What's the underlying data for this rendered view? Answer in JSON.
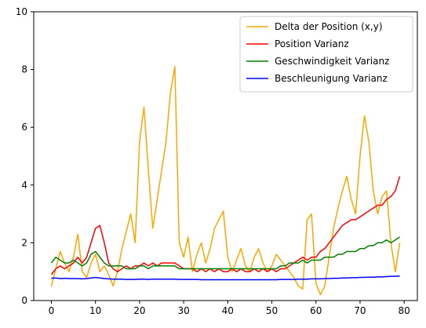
{
  "chart_data": {
    "type": "line",
    "title": "",
    "xlabel": "",
    "ylabel": "",
    "xlim": [
      -4,
      83
    ],
    "ylim": [
      0,
      10
    ],
    "x_ticks": [
      0,
      10,
      20,
      30,
      40,
      50,
      60,
      70,
      80
    ],
    "y_ticks": [
      0,
      2,
      4,
      6,
      8,
      10
    ],
    "grid": false,
    "legend": "top-right",
    "x": [
      0,
      1,
      2,
      3,
      4,
      5,
      6,
      7,
      8,
      9,
      10,
      11,
      12,
      13,
      14,
      15,
      16,
      17,
      18,
      19,
      20,
      21,
      22,
      23,
      24,
      25,
      26,
      27,
      28,
      29,
      30,
      31,
      32,
      33,
      34,
      35,
      36,
      37,
      38,
      39,
      40,
      41,
      42,
      43,
      44,
      45,
      46,
      47,
      48,
      49,
      50,
      51,
      52,
      53,
      54,
      55,
      56,
      57,
      58,
      59,
      60,
      61,
      62,
      63,
      64,
      65,
      66,
      67,
      68,
      69,
      70,
      71,
      72,
      73,
      74,
      75,
      76,
      77,
      78,
      79
    ],
    "series": [
      {
        "name": "Delta der Position (x,y)",
        "color": "#ffa500",
        "values": [
          0.5,
          1.1,
          1.7,
          1.3,
          1.0,
          1.5,
          2.3,
          1.0,
          0.8,
          1.3,
          1.6,
          1.0,
          1.2,
          0.9,
          0.5,
          1.0,
          1.8,
          2.4,
          3.0,
          2.0,
          5.5,
          6.7,
          4.5,
          2.5,
          3.5,
          4.5,
          5.5,
          7.2,
          8.1,
          2.0,
          1.5,
          2.2,
          1.0,
          1.6,
          2.0,
          1.3,
          1.8,
          2.5,
          2.8,
          3.1,
          1.5,
          1.0,
          1.4,
          1.8,
          1.2,
          1.0,
          1.5,
          1.8,
          1.3,
          1.0,
          1.2,
          1.6,
          1.4,
          1.2,
          1.0,
          0.8,
          0.5,
          0.4,
          2.8,
          3.0,
          0.6,
          0.2,
          0.5,
          1.5,
          2.5,
          3.2,
          3.8,
          4.3,
          3.5,
          3.0,
          5.0,
          6.4,
          5.5,
          3.8,
          3.0,
          3.6,
          3.8,
          2.0,
          1.0,
          2.0
        ]
      },
      {
        "name": "Position Varianz",
        "color": "#ff0000",
        "values": [
          0.9,
          1.1,
          1.2,
          1.1,
          1.2,
          1.3,
          1.5,
          1.3,
          1.5,
          2.0,
          2.5,
          2.6,
          2.0,
          1.3,
          1.1,
          1.0,
          1.1,
          1.2,
          1.1,
          1.2,
          1.2,
          1.3,
          1.2,
          1.3,
          1.2,
          1.3,
          1.3,
          1.3,
          1.3,
          1.2,
          1.1,
          1.1,
          1.1,
          1.0,
          1.1,
          1.0,
          1.1,
          1.0,
          1.1,
          1.0,
          1.0,
          1.1,
          1.0,
          1.1,
          1.0,
          1.0,
          1.1,
          1.0,
          1.1,
          1.0,
          1.1,
          1.0,
          1.1,
          1.1,
          1.2,
          1.3,
          1.4,
          1.5,
          1.4,
          1.5,
          1.5,
          1.7,
          1.8,
          2.0,
          2.2,
          2.4,
          2.6,
          2.7,
          2.8,
          2.8,
          2.9,
          3.0,
          3.1,
          3.2,
          3.3,
          3.3,
          3.5,
          3.6,
          3.8,
          4.3
        ]
      },
      {
        "name": "Geschwindigkeit Varianz",
        "color": "#008000",
        "values": [
          1.3,
          1.5,
          1.4,
          1.3,
          1.3,
          1.4,
          1.3,
          1.2,
          1.3,
          1.6,
          1.7,
          1.5,
          1.3,
          1.2,
          1.2,
          1.2,
          1.2,
          1.1,
          1.1,
          1.1,
          1.2,
          1.2,
          1.1,
          1.2,
          1.2,
          1.2,
          1.2,
          1.2,
          1.2,
          1.1,
          1.1,
          1.1,
          1.1,
          1.1,
          1.1,
          1.1,
          1.1,
          1.1,
          1.1,
          1.1,
          1.1,
          1.1,
          1.1,
          1.1,
          1.1,
          1.1,
          1.1,
          1.1,
          1.1,
          1.1,
          1.1,
          1.1,
          1.2,
          1.2,
          1.3,
          1.3,
          1.3,
          1.4,
          1.3,
          1.4,
          1.4,
          1.4,
          1.5,
          1.5,
          1.5,
          1.6,
          1.6,
          1.7,
          1.7,
          1.7,
          1.8,
          1.8,
          1.9,
          1.9,
          2.0,
          2.0,
          2.1,
          2.0,
          2.1,
          2.2
        ]
      },
      {
        "name": "Beschleunigung Varianz",
        "color": "#0000ff",
        "values": [
          0.77,
          0.78,
          0.76,
          0.77,
          0.76,
          0.76,
          0.76,
          0.75,
          0.76,
          0.78,
          0.8,
          0.78,
          0.76,
          0.75,
          0.74,
          0.74,
          0.74,
          0.73,
          0.73,
          0.73,
          0.74,
          0.74,
          0.73,
          0.74,
          0.74,
          0.74,
          0.74,
          0.74,
          0.74,
          0.73,
          0.73,
          0.73,
          0.73,
          0.73,
          0.72,
          0.72,
          0.72,
          0.72,
          0.72,
          0.72,
          0.72,
          0.72,
          0.72,
          0.72,
          0.72,
          0.72,
          0.72,
          0.72,
          0.72,
          0.72,
          0.72,
          0.72,
          0.73,
          0.73,
          0.73,
          0.73,
          0.74,
          0.74,
          0.74,
          0.75,
          0.75,
          0.75,
          0.76,
          0.76,
          0.77,
          0.77,
          0.78,
          0.78,
          0.79,
          0.79,
          0.8,
          0.8,
          0.81,
          0.81,
          0.82,
          0.82,
          0.83,
          0.84,
          0.84,
          0.85
        ]
      }
    ]
  }
}
